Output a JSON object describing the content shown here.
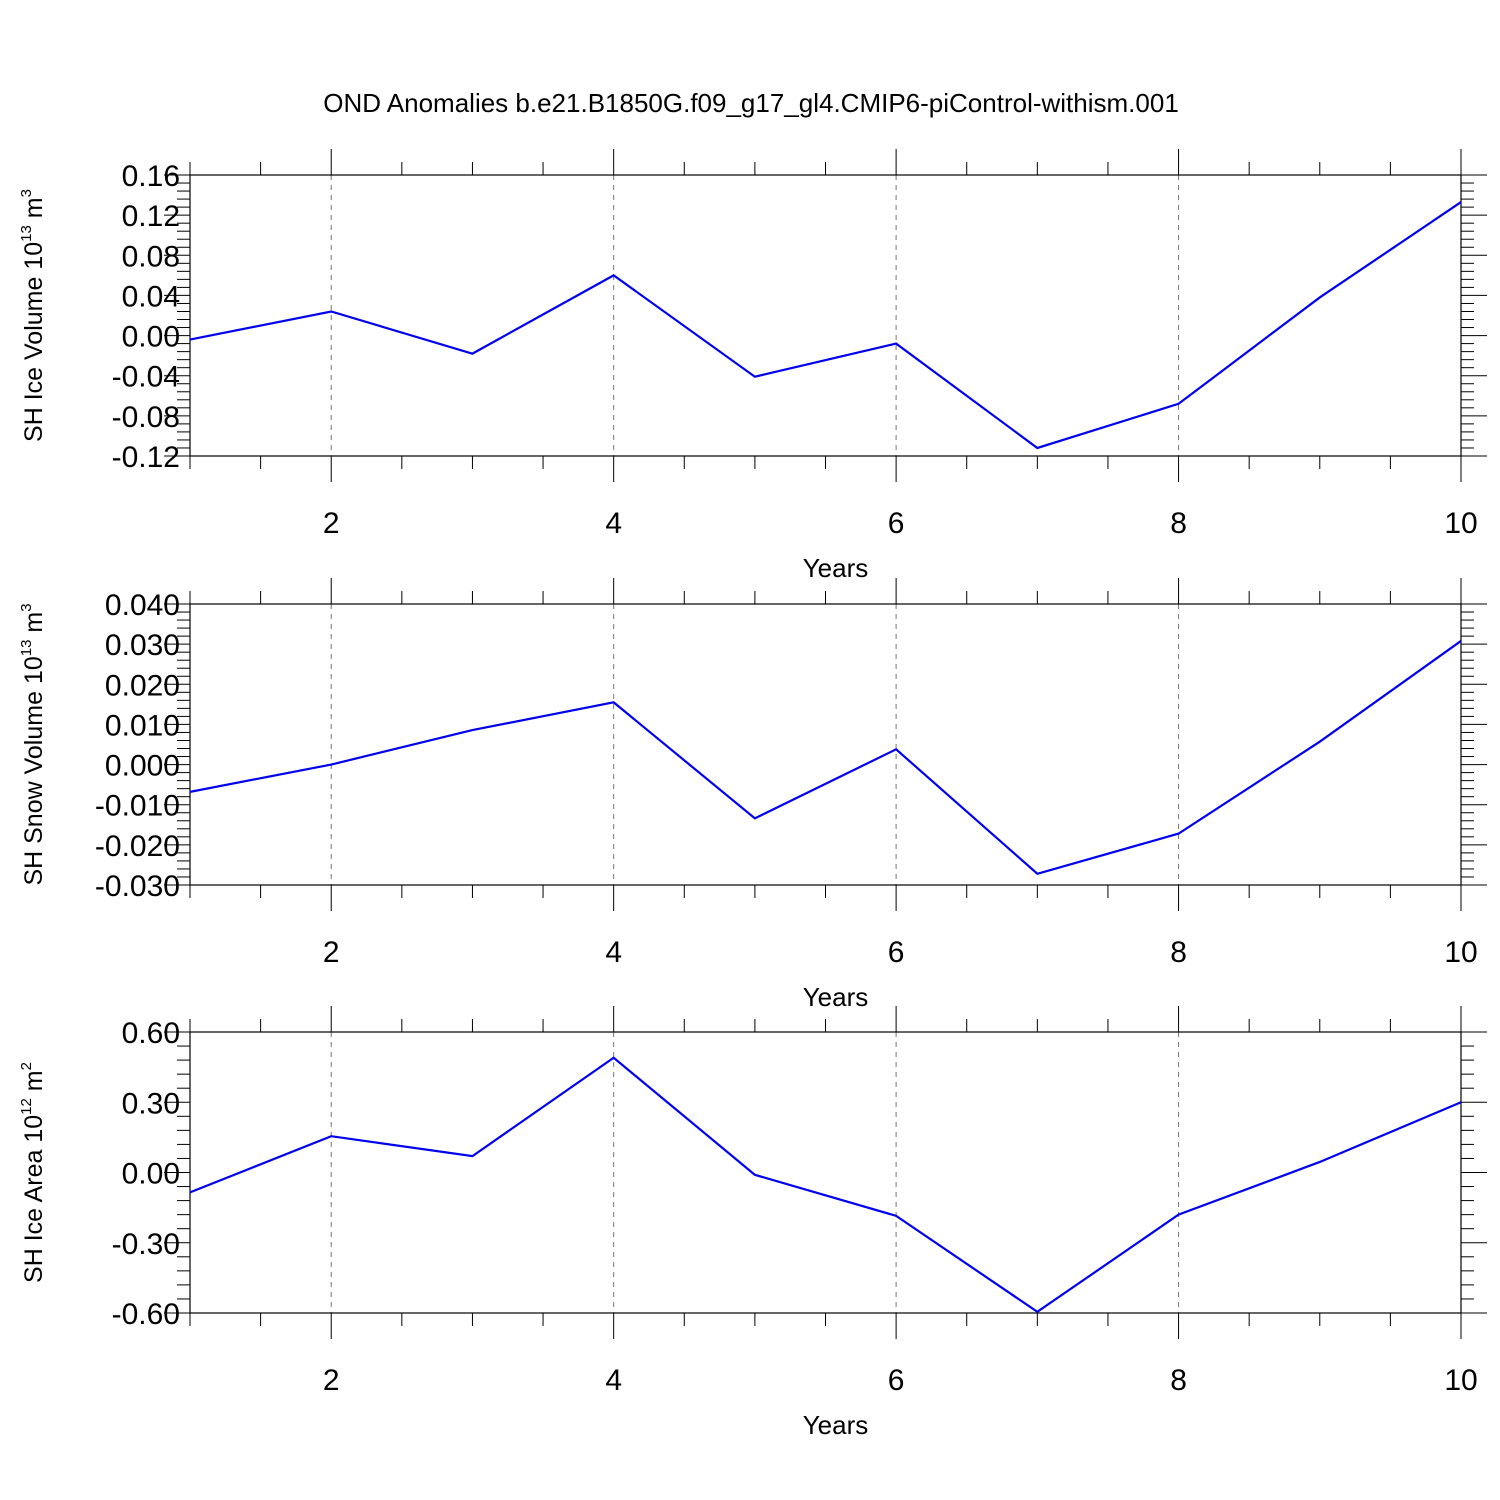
{
  "title": "OND Anomalies b.e21.B1850G.f09_g17_gl4.CMIP6-piControl-withism.001",
  "colors": {
    "series": "#0000ee",
    "axis": "#000000",
    "grid": "#777777"
  },
  "chart_data": [
    {
      "type": "line",
      "ylabel": {
        "text": "SH Ice Volume 10",
        "exponent": "13",
        "unit_text": " m",
        "unit_exponent": "3"
      },
      "xlabel": "Years",
      "xlim": [
        1,
        10
      ],
      "ylim": [
        -0.12,
        0.16
      ],
      "xticks": [
        2,
        4,
        6,
        8,
        10
      ],
      "xtick_labels": [
        "2",
        "4",
        "6",
        "8",
        "10"
      ],
      "yticks": [
        -0.12,
        -0.08,
        -0.04,
        0.0,
        0.04,
        0.08,
        0.12,
        0.16
      ],
      "ytick_labels": [
        "-0.12",
        "-0.08",
        "-0.04",
        "0.00",
        "0.04",
        "0.08",
        "0.12",
        "0.16"
      ],
      "grid": "vertical-dashed",
      "x": [
        1,
        2,
        3,
        4,
        5,
        6,
        7,
        8,
        9,
        10
      ],
      "values": [
        -0.004,
        0.024,
        -0.018,
        0.06,
        -0.041,
        -0.008,
        -0.112,
        -0.068,
        0.038,
        0.133
      ]
    },
    {
      "type": "line",
      "ylabel": {
        "text": "SH Snow Volume 10",
        "exponent": "13",
        "unit_text": " m",
        "unit_exponent": "3"
      },
      "xlabel": "Years",
      "xlim": [
        1,
        10
      ],
      "ylim": [
        -0.03,
        0.04
      ],
      "xticks": [
        2,
        4,
        6,
        8,
        10
      ],
      "xtick_labels": [
        "2",
        "4",
        "6",
        "8",
        "10"
      ],
      "yticks": [
        -0.03,
        -0.02,
        -0.01,
        0.0,
        0.01,
        0.02,
        0.03,
        0.04
      ],
      "ytick_labels": [
        "-0.030",
        "-0.020",
        "-0.010",
        "0.000",
        "0.010",
        "0.020",
        "0.030",
        "0.040"
      ],
      "grid": "vertical-dashed",
      "x": [
        1,
        2,
        3,
        4,
        5,
        6,
        7,
        8,
        9,
        10
      ],
      "values": [
        -0.0068,
        0.0,
        0.0086,
        0.0155,
        -0.0134,
        0.0038,
        -0.0272,
        -0.0172,
        0.0057,
        0.0308
      ]
    },
    {
      "type": "line",
      "ylabel": {
        "text": "SH Ice Area 10",
        "exponent": "12",
        "unit_text": " m",
        "unit_exponent": "2"
      },
      "xlabel": "Years",
      "xlim": [
        1,
        10
      ],
      "ylim": [
        -0.6,
        0.6
      ],
      "xticks": [
        2,
        4,
        6,
        8,
        10
      ],
      "xtick_labels": [
        "2",
        "4",
        "6",
        "8",
        "10"
      ],
      "yticks": [
        -0.6,
        -0.3,
        0.0,
        0.3,
        0.6
      ],
      "ytick_labels": [
        "-0.60",
        "-0.30",
        "0.00",
        "0.30",
        "0.60"
      ],
      "grid": "vertical-dashed",
      "x": [
        1,
        2,
        3,
        4,
        5,
        6,
        7,
        8,
        9,
        10
      ],
      "values": [
        -0.085,
        0.155,
        0.07,
        0.49,
        -0.01,
        -0.185,
        -0.595,
        -0.18,
        0.045,
        0.3
      ]
    }
  ]
}
